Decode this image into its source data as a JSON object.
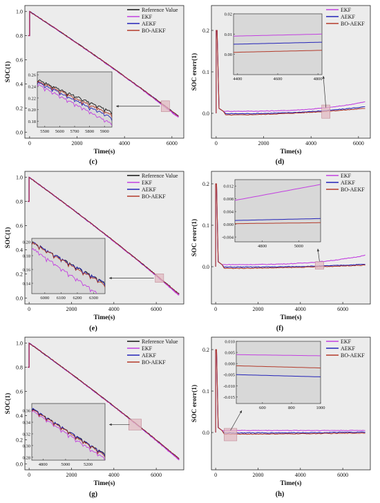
{
  "colors": {
    "reference": "#111111",
    "ekf": "#c23fe0",
    "aekf": "#2323b8",
    "boaekf": "#b33a2a",
    "plot_bg": "#ececec",
    "inset_bg": "#d8d8d8",
    "inset_box": "#e2b9c2"
  },
  "panels": [
    {
      "label": "(c)",
      "type": "soc",
      "xlabel": "Time(s)",
      "ylabel": "SOC(1)",
      "xlim": [
        -200,
        6500
      ],
      "ylim": [
        -0.05,
        1.05
      ],
      "xticks": [
        0,
        2000,
        4000,
        6000
      ],
      "yticks": [
        0.0,
        0.2,
        0.4,
        0.6,
        0.8,
        1.0
      ],
      "end_time": 6300,
      "end_soc": 0.13,
      "legend": [
        "Reference Value",
        "EKF",
        "AEKF",
        "BO-AEKF"
      ],
      "inset": {
        "xlim": [
          5450,
          5950
        ],
        "ylim": [
          0.17,
          0.265
        ],
        "xticks": [
          5500,
          5600,
          5700,
          5800,
          5900
        ],
        "yticks": [
          0.18,
          0.2,
          0.22,
          0.24,
          0.26
        ],
        "ref_start": 0.252,
        "ref_end": 0.196,
        "offsets": [
          0.0,
          -0.02,
          -0.01,
          -0.005
        ]
      },
      "zoom_region": {
        "x": [
          5550,
          5900
        ],
        "y": [
          0.17,
          0.26
        ]
      }
    },
    {
      "label": "(d)",
      "type": "err",
      "xlabel": "Time(s)",
      "ylabel": "SOC erorr(1)",
      "xlim": [
        -200,
        6500
      ],
      "ylim": [
        -0.06,
        0.26
      ],
      "xticks": [
        0,
        2000,
        4000,
        6000
      ],
      "yticks": [
        0.0,
        0.1,
        0.2
      ],
      "end_time": 6300,
      "ends": [
        0.028,
        0.016,
        0.012
      ],
      "legend": [
        "EKF",
        "AEKF",
        "BO-AEKF"
      ],
      "inset": {
        "xlim": [
          4380,
          4820
        ],
        "ylim": [
          -0.01,
          0.02
        ],
        "xticks": [
          4400,
          4600,
          4800
        ],
        "yticks": [
          0.0,
          0.01,
          0.02
        ],
        "starts": [
          0.009,
          0.005,
          0.001
        ],
        "ends": [
          0.01,
          0.006,
          0.002
        ]
      },
      "zoom_region": {
        "x": [
          4450,
          4800
        ],
        "y": [
          -0.012,
          0.02
        ]
      }
    },
    {
      "label": "(e)",
      "type": "soc",
      "xlabel": "Time(s)",
      "ylabel": "SOC(1)",
      "xlim": [
        -200,
        7300
      ],
      "ylim": [
        -0.05,
        1.05
      ],
      "xticks": [
        0,
        2000,
        4000,
        6000
      ],
      "yticks": [
        0.0,
        0.2,
        0.4,
        0.6,
        0.8,
        1.0
      ],
      "end_time": 7100,
      "end_soc": 0.03,
      "legend": [
        "Reference Value",
        "EKF",
        "AEKF",
        "BO-AEKF"
      ],
      "inset": {
        "xlim": [
          5920,
          6370
        ],
        "ylim": [
          0.125,
          0.205
        ],
        "xticks": [
          6000,
          6100,
          6200,
          6300
        ],
        "yticks": [
          0.14,
          0.16,
          0.18,
          0.2
        ],
        "ref_start": 0.2,
        "ref_end": 0.14,
        "offsets": [
          0.0,
          -0.022,
          0.0,
          -0.002
        ]
      },
      "zoom_region": {
        "x": [
          5950,
          6350
        ],
        "y": [
          0.13,
          0.2
        ]
      }
    },
    {
      "label": "(f)",
      "type": "err",
      "xlabel": "Time(s)",
      "ylabel": "SOC erorr(1)",
      "xlim": [
        -200,
        7300
      ],
      "ylim": [
        -0.09,
        0.23
      ],
      "xticks": [
        0,
        2000,
        4000,
        6000
      ],
      "yticks": [
        0.0,
        0.1,
        0.2
      ],
      "end_time": 7100,
      "ends": [
        0.028,
        0.006,
        0.004
      ],
      "legend": [
        "EKF",
        "AEKF",
        "BO-AEKF"
      ],
      "inset": {
        "xlim": [
          4650,
          5120
        ],
        "ylim": [
          -0.0055,
          0.014
        ],
        "xticks": [
          4800,
          5000
        ],
        "yticks": [
          -0.004,
          0.0,
          0.004,
          0.008,
          0.012
        ],
        "starts": [
          0.0075,
          0.0012,
          0.0002
        ],
        "ends": [
          0.0125,
          0.0018,
          0.0005
        ]
      },
      "zoom_region": {
        "x": [
          4700,
          5100
        ],
        "y": [
          -0.006,
          0.012
        ]
      }
    },
    {
      "label": "(g)",
      "type": "soc",
      "xlabel": "Time(s)",
      "ylabel": "SOC(1)",
      "xlim": [
        -200,
        7300
      ],
      "ylim": [
        -0.05,
        1.05
      ],
      "xticks": [
        0,
        2000,
        4000,
        6000
      ],
      "yticks": [
        0.0,
        0.2,
        0.4,
        0.6,
        0.8,
        1.0
      ],
      "end_time": 7100,
      "end_soc": 0.04,
      "legend": [
        "Reference Value",
        "EKF",
        "AEKF",
        "BO-AEKF"
      ],
      "inset": {
        "xlim": [
          4700,
          5350
        ],
        "ylim": [
          0.275,
          0.372
        ],
        "xticks": [
          4800,
          5000,
          5200
        ],
        "yticks": [
          0.28,
          0.3,
          0.32,
          0.34,
          0.36
        ],
        "ref_start": 0.364,
        "ref_end": 0.285,
        "offsets": [
          0.0,
          -0.008,
          0.0,
          -0.002
        ]
      },
      "zoom_region": {
        "x": [
          4700,
          5300
        ],
        "y": [
          0.28,
          0.37
        ]
      }
    },
    {
      "label": "(h)",
      "type": "err",
      "xlabel": "Time(s)",
      "ylabel": "SOC erorr(1)",
      "xlim": [
        -200,
        7300
      ],
      "ylim": [
        -0.09,
        0.23
      ],
      "xticks": [
        0,
        2000,
        4000,
        6000
      ],
      "yticks": [
        0.0,
        0.1,
        0.2
      ],
      "end_time": 7100,
      "ends": [
        0.005,
        0.001,
        -0.001
      ],
      "legend": [
        "EKF",
        "AEKF",
        "BO-AEKF"
      ],
      "inset": {
        "xlim": [
          420,
          1000
        ],
        "ylim": [
          -0.018,
          0.01
        ],
        "xticks": [
          600,
          800,
          1000
        ],
        "yticks": [
          -0.015,
          -0.01,
          -0.005,
          0.0,
          0.005,
          0.01
        ],
        "starts": [
          0.004,
          -0.005,
          -0.001
        ],
        "ends": [
          0.0035,
          -0.006,
          -0.002
        ]
      },
      "zoom_region": {
        "x": [
          400,
          1000
        ],
        "y": [
          -0.02,
          0.01
        ]
      }
    }
  ]
}
